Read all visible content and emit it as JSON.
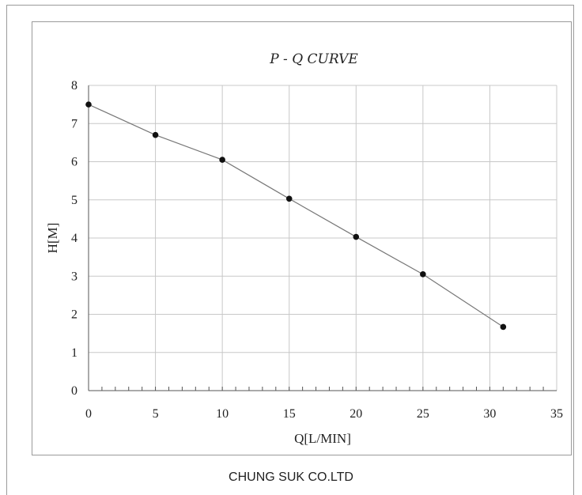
{
  "company": "CHUNG SUK CO.LTD",
  "chart_data": {
    "type": "line",
    "title": "P - Q CURVE",
    "xlabel": "Q[L/MIN]",
    "ylabel": "H[M]",
    "xlim": [
      0,
      35
    ],
    "ylim": [
      0,
      8
    ],
    "xticks": [
      0,
      5,
      10,
      15,
      20,
      25,
      30,
      35
    ],
    "yticks": [
      0,
      1,
      2,
      3,
      4,
      5,
      6,
      7,
      8
    ],
    "x_minor_step": 1,
    "grid": true,
    "line_color": "#777777",
    "marker_color": "#111111",
    "series": [
      {
        "x": [
          0,
          5,
          10,
          15,
          20,
          25,
          31
        ],
        "y": [
          7.5,
          6.7,
          6.05,
          5.03,
          4.03,
          3.05,
          1.67
        ]
      }
    ]
  }
}
